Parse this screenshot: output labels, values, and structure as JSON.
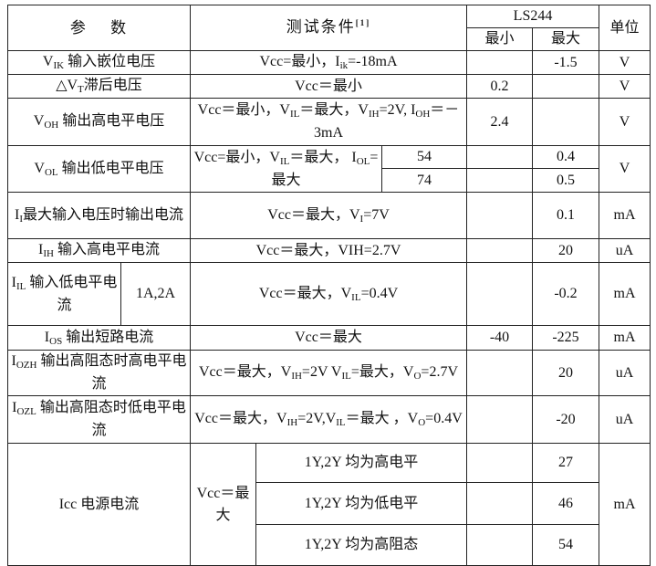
{
  "header": {
    "param": [
      {
        "t": "参　 数"
      }
    ],
    "cond": [
      {
        "t": "测试条件"
      },
      {
        "t": "[1]",
        "sup": true
      }
    ],
    "device": [
      {
        "t": "LS244"
      }
    ],
    "min": [
      {
        "t": "最小"
      }
    ],
    "max": [
      {
        "t": "最大"
      }
    ],
    "unit": [
      {
        "t": "单位"
      }
    ]
  },
  "rows": {
    "vik": {
      "param": [
        {
          "t": "V"
        },
        {
          "t": "IK",
          "sub": true
        },
        {
          "t": " 输入嵌位电压"
        }
      ],
      "cond": [
        {
          "t": "Vcc=最小，I"
        },
        {
          "t": "ik",
          "sub": true
        },
        {
          "t": "=-18mA"
        }
      ],
      "min": [],
      "max": [
        {
          "t": "-1.5"
        }
      ],
      "unit": [
        {
          "t": "V"
        }
      ]
    },
    "dvt": {
      "param": [
        {
          "t": "△V"
        },
        {
          "t": "T",
          "sub": true
        },
        {
          "t": "滞后电压"
        }
      ],
      "cond": [
        {
          "t": "Vcc＝最小"
        }
      ],
      "min": [
        {
          "t": "0.2"
        }
      ],
      "max": [],
      "unit": [
        {
          "t": "V"
        }
      ]
    },
    "voh": {
      "param": [
        {
          "t": "V"
        },
        {
          "t": "OH",
          "sub": true
        },
        {
          "t": " 输出高电平电压"
        }
      ],
      "cond": [
        {
          "t": "Vcc＝最小，V"
        },
        {
          "t": "IL",
          "sub": true
        },
        {
          "t": "＝最大，V"
        },
        {
          "t": "IH",
          "sub": true
        },
        {
          "t": "=2V, I"
        },
        {
          "t": "OH",
          "sub": true
        },
        {
          "t": "＝－3mA"
        }
      ],
      "min": [
        {
          "t": "2.4"
        }
      ],
      "max": [],
      "unit": [
        {
          "t": "V"
        }
      ]
    },
    "vol": {
      "param": [
        {
          "t": "V"
        },
        {
          "t": "OL",
          "sub": true
        },
        {
          "t": " 输出低电平电压"
        }
      ],
      "cond": [
        {
          "t": "Vcc=最小，V"
        },
        {
          "t": "IL",
          "sub": true
        },
        {
          "t": "＝最大， I"
        },
        {
          "t": "OL",
          "sub": true
        },
        {
          "t": "=最大"
        }
      ],
      "sub_rows": [
        {
          "type": [
            {
              "t": "54"
            }
          ],
          "min": [],
          "max": [
            {
              "t": "0.4"
            }
          ]
        },
        {
          "type": [
            {
              "t": "74"
            }
          ],
          "min": [],
          "max": [
            {
              "t": "0.5"
            }
          ]
        }
      ],
      "unit": [
        {
          "t": "V"
        }
      ]
    },
    "ii": {
      "param": [
        {
          "t": "I"
        },
        {
          "t": "I",
          "sub": true
        },
        {
          "t": "最大输入电压时输出电流"
        }
      ],
      "cond": [
        {
          "t": "Vcc＝最大，V"
        },
        {
          "t": "I",
          "sub": true
        },
        {
          "t": "=7V"
        }
      ],
      "min": [],
      "max": [
        {
          "t": "0.1"
        }
      ],
      "unit": [
        {
          "t": "mA"
        }
      ]
    },
    "iih": {
      "param": [
        {
          "t": "I"
        },
        {
          "t": "IH",
          "sub": true
        },
        {
          "t": " 输入高电平电流"
        }
      ],
      "cond": [
        {
          "t": "Vcc＝最大，VIH=2.7V"
        }
      ],
      "min": [],
      "max": [
        {
          "t": "20"
        }
      ],
      "unit": [
        {
          "t": "uA"
        }
      ]
    },
    "iil": {
      "param": [
        {
          "t": "I"
        },
        {
          "t": "IL",
          "sub": true
        },
        {
          "t": " 输入低电平电流"
        }
      ],
      "pins": [
        {
          "t": "1A,2A"
        }
      ],
      "cond": [
        {
          "t": "Vcc＝最大，V"
        },
        {
          "t": "IL",
          "sub": true
        },
        {
          "t": "=0.4V"
        }
      ],
      "min": [],
      "max": [
        {
          "t": "-0.2"
        }
      ],
      "unit": [
        {
          "t": "mA"
        }
      ]
    },
    "ios": {
      "param": [
        {
          "t": "I"
        },
        {
          "t": "OS",
          "sub": true
        },
        {
          "t": " 输出短路电流"
        }
      ],
      "cond": [
        {
          "t": "Vcc＝最大"
        }
      ],
      "min": [
        {
          "t": "-40"
        }
      ],
      "max": [
        {
          "t": "-225"
        }
      ],
      "unit": [
        {
          "t": "mA"
        }
      ]
    },
    "iozh": {
      "param": [
        {
          "t": "I"
        },
        {
          "t": "OZH",
          "sub": true
        },
        {
          "t": " 输出高阻态时高电平电流"
        }
      ],
      "cond": [
        {
          "t": "Vcc＝最大，V"
        },
        {
          "t": "IH",
          "sub": true
        },
        {
          "t": "=2V V"
        },
        {
          "t": "IL",
          "sub": true
        },
        {
          "t": "=最大，V"
        },
        {
          "t": "O",
          "sub": true
        },
        {
          "t": "=2.7V"
        }
      ],
      "min": [],
      "max": [
        {
          "t": "20"
        }
      ],
      "unit": [
        {
          "t": "uA"
        }
      ]
    },
    "iozl": {
      "param": [
        {
          "t": "I"
        },
        {
          "t": "OZL",
          "sub": true
        },
        {
          "t": " 输出高阻态时低电平电流"
        }
      ],
      "cond": [
        {
          "t": "Vcc＝最大，V"
        },
        {
          "t": "IH",
          "sub": true
        },
        {
          "t": "=2V,V"
        },
        {
          "t": "IL",
          "sub": true
        },
        {
          "t": "＝最大 ，V"
        },
        {
          "t": "O",
          "sub": true
        },
        {
          "t": "=0.4V"
        }
      ],
      "min": [],
      "max": [
        {
          "t": "-20"
        }
      ],
      "unit": [
        {
          "t": "uA"
        }
      ]
    },
    "icc": {
      "param": [
        {
          "t": "Icc 电源电流"
        }
      ],
      "vcc": [
        {
          "t": "Vcc＝最大"
        }
      ],
      "sub_rows": [
        {
          "cond": [
            {
              "t": "1Y,2Y 均为高电平"
            }
          ],
          "min": [],
          "max": [
            {
              "t": "27"
            }
          ]
        },
        {
          "cond": [
            {
              "t": "1Y,2Y 均为低电平"
            }
          ],
          "min": [],
          "max": [
            {
              "t": "46"
            }
          ]
        },
        {
          "cond": [
            {
              "t": "1Y,2Y 均为高阻态"
            }
          ],
          "min": [],
          "max": [
            {
              "t": "54"
            }
          ]
        }
      ],
      "unit": [
        {
          "t": "mA"
        }
      ]
    }
  }
}
